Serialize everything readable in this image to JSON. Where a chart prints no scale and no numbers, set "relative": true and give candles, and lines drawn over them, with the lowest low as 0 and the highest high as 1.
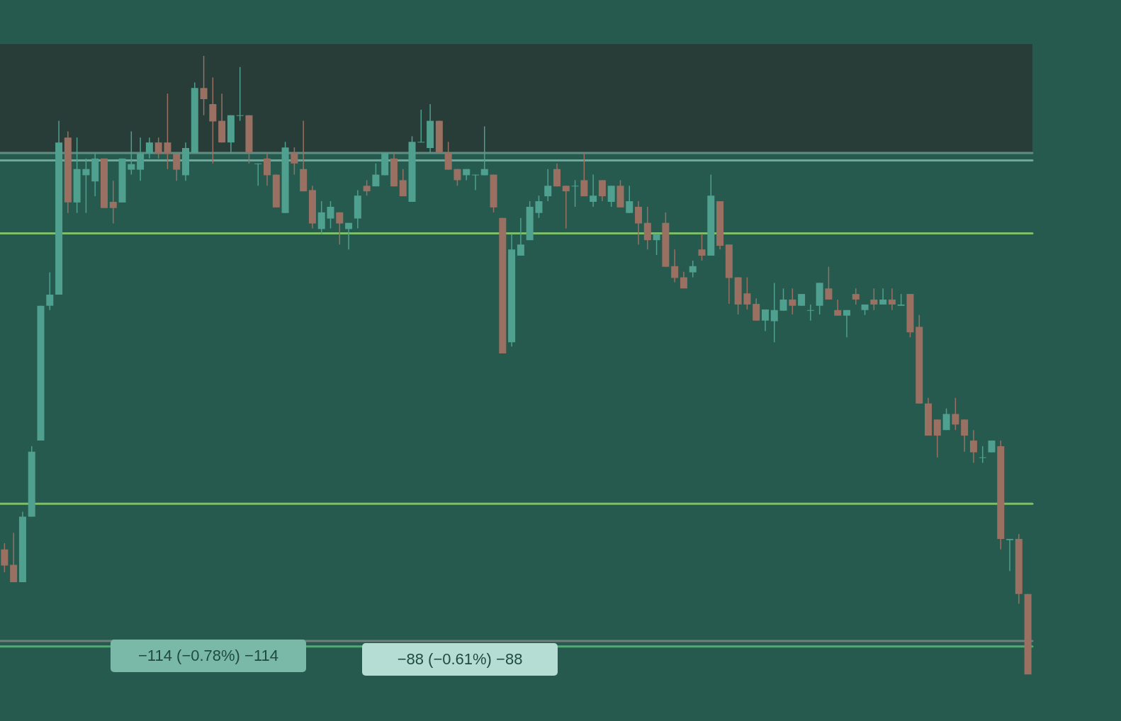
{
  "chart_data": {
    "type": "candlestick",
    "relative": true,
    "categories": [
      null,
      null,
      null,
      null,
      null,
      null,
      null,
      null,
      null,
      null,
      null,
      null,
      null,
      null,
      null,
      null,
      null,
      null,
      null,
      null,
      null,
      null,
      null,
      null,
      null,
      null,
      null,
      null,
      null,
      null,
      null,
      null,
      null,
      null,
      null,
      null,
      null,
      null,
      null,
      null,
      null,
      null,
      null,
      null,
      null,
      null,
      null,
      null,
      null,
      null,
      null,
      null,
      null,
      null,
      null,
      null,
      null,
      null,
      null,
      null,
      null,
      null,
      null,
      null,
      null,
      null,
      null,
      null,
      null,
      null,
      null,
      null,
      null,
      null,
      null,
      null,
      null,
      null,
      null,
      null,
      null,
      null,
      null,
      null,
      null,
      null,
      null,
      null,
      null,
      null,
      null,
      null,
      null,
      null,
      null,
      null,
      null,
      null,
      null,
      null,
      null,
      null,
      null,
      null,
      null,
      null,
      null,
      null,
      null,
      null,
      null,
      null,
      null,
      null
    ],
    "ohlc": [
      [
        0.202,
        0.212,
        0.165,
        0.176
      ],
      [
        0.177,
        0.229,
        0.149,
        0.149
      ],
      [
        0.149,
        0.263,
        0.149,
        0.255
      ],
      [
        0.255,
        0.369,
        0.255,
        0.36
      ],
      [
        0.378,
        0.596,
        0.378,
        0.596
      ],
      [
        0.596,
        0.65,
        0.589,
        0.614
      ],
      [
        0.614,
        0.895,
        0.614,
        0.86
      ],
      [
        0.868,
        0.878,
        0.746,
        0.763
      ],
      [
        0.763,
        0.868,
        0.746,
        0.817
      ],
      [
        0.807,
        0.834,
        0.746,
        0.817
      ],
      [
        0.797,
        0.842,
        0.773,
        0.834
      ],
      [
        0.834,
        0.834,
        0.754,
        0.754
      ],
      [
        0.764,
        0.798,
        0.729,
        0.754
      ],
      [
        0.763,
        0.834,
        0.763,
        0.834
      ],
      [
        0.816,
        0.878,
        0.808,
        0.825
      ],
      [
        0.816,
        0.868,
        0.798,
        0.842
      ],
      [
        0.842,
        0.868,
        0.834,
        0.86
      ],
      [
        0.86,
        0.868,
        0.834,
        0.842
      ],
      [
        0.86,
        0.939,
        0.817,
        0.842
      ],
      [
        0.842,
        0.842,
        0.798,
        0.816
      ],
      [
        0.807,
        0.86,
        0.798,
        0.851
      ],
      [
        0.843,
        0.957,
        0.843,
        0.948
      ],
      [
        0.948,
        1.0,
        0.904,
        0.93
      ],
      [
        0.922,
        0.965,
        0.826,
        0.894
      ],
      [
        0.895,
        0.939,
        0.86,
        0.86
      ],
      [
        0.86,
        0.904,
        0.844,
        0.904
      ],
      [
        0.903,
        0.982,
        0.895,
        0.904
      ],
      [
        0.904,
        0.904,
        0.826,
        0.843
      ],
      [
        0.825,
        0.826,
        0.79,
        0.826
      ],
      [
        0.834,
        0.843,
        0.79,
        0.807
      ],
      [
        0.808,
        0.808,
        0.755,
        0.755
      ],
      [
        0.746,
        0.861,
        0.746,
        0.852
      ],
      [
        0.843,
        0.852,
        0.808,
        0.826
      ],
      [
        0.817,
        0.895,
        0.781,
        0.781
      ],
      [
        0.783,
        0.79,
        0.721,
        0.729
      ],
      [
        0.72,
        0.765,
        0.712,
        0.747
      ],
      [
        0.737,
        0.765,
        0.721,
        0.756
      ],
      [
        0.747,
        0.747,
        0.695,
        0.729
      ],
      [
        0.72,
        0.73,
        0.687,
        0.73
      ],
      [
        0.737,
        0.783,
        0.721,
        0.774
      ],
      [
        0.79,
        0.799,
        0.774,
        0.781
      ],
      [
        0.789,
        0.826,
        0.789,
        0.808
      ],
      [
        0.807,
        0.843,
        0.807,
        0.843
      ],
      [
        0.834,
        0.843,
        0.789,
        0.789
      ],
      [
        0.799,
        0.817,
        0.773,
        0.773
      ],
      [
        0.764,
        0.87,
        0.764,
        0.861
      ],
      [
        0.86,
        0.913,
        0.86,
        0.861
      ],
      [
        0.851,
        0.922,
        0.843,
        0.895
      ],
      [
        0.895,
        0.895,
        0.843,
        0.843
      ],
      [
        0.843,
        0.861,
        0.816,
        0.816
      ],
      [
        0.817,
        0.817,
        0.79,
        0.799
      ],
      [
        0.807,
        0.817,
        0.799,
        0.817
      ],
      [
        0.807,
        0.808,
        0.783,
        0.808
      ],
      [
        0.807,
        0.886,
        0.807,
        0.817
      ],
      [
        0.808,
        0.808,
        0.747,
        0.755
      ],
      [
        0.738,
        0.738,
        0.519,
        0.519
      ],
      [
        0.537,
        0.712,
        0.53,
        0.687
      ],
      [
        0.677,
        0.738,
        0.677,
        0.695
      ],
      [
        0.702,
        0.765,
        0.702,
        0.756
      ],
      [
        0.746,
        0.774,
        0.738,
        0.765
      ],
      [
        0.773,
        0.817,
        0.765,
        0.79
      ],
      [
        0.817,
        0.826,
        0.789,
        0.789
      ],
      [
        0.79,
        0.79,
        0.721,
        0.781
      ],
      [
        0.789,
        0.799,
        0.756,
        0.79
      ],
      [
        0.799,
        0.843,
        0.773,
        0.773
      ],
      [
        0.764,
        0.808,
        0.756,
        0.774
      ],
      [
        0.799,
        0.799,
        0.765,
        0.773
      ],
      [
        0.764,
        0.79,
        0.756,
        0.79
      ],
      [
        0.79,
        0.799,
        0.755,
        0.755
      ],
      [
        0.746,
        0.79,
        0.746,
        0.765
      ],
      [
        0.756,
        0.765,
        0.695,
        0.729
      ],
      [
        0.73,
        0.756,
        0.687,
        0.702
      ],
      [
        0.702,
        0.712,
        0.678,
        0.712
      ],
      [
        0.73,
        0.747,
        0.659,
        0.659
      ],
      [
        0.66,
        0.687,
        0.634,
        0.641
      ],
      [
        0.642,
        0.651,
        0.624,
        0.624
      ],
      [
        0.65,
        0.669,
        0.642,
        0.66
      ],
      [
        0.687,
        0.712,
        0.669,
        0.677
      ],
      [
        0.677,
        0.808,
        0.677,
        0.774
      ],
      [
        0.765,
        0.765,
        0.687,
        0.693
      ],
      [
        0.695,
        0.695,
        0.599,
        0.641
      ],
      [
        0.642,
        0.642,
        0.582,
        0.598
      ],
      [
        0.616,
        0.642,
        0.59,
        0.598
      ],
      [
        0.599,
        0.608,
        0.572,
        0.572
      ],
      [
        0.572,
        0.59,
        0.555,
        0.59
      ],
      [
        0.571,
        0.633,
        0.537,
        0.589
      ],
      [
        0.588,
        0.624,
        0.588,
        0.606
      ],
      [
        0.606,
        0.624,
        0.582,
        0.596
      ],
      [
        0.596,
        0.615,
        0.596,
        0.615
      ],
      [
        0.588,
        0.598,
        0.572,
        0.589
      ],
      [
        0.596,
        0.633,
        0.582,
        0.633
      ],
      [
        0.624,
        0.659,
        0.606,
        0.606
      ],
      [
        0.589,
        0.606,
        0.58,
        0.58
      ],
      [
        0.58,
        0.589,
        0.545,
        0.589
      ],
      [
        0.615,
        0.624,
        0.598,
        0.606
      ],
      [
        0.589,
        0.598,
        0.581,
        0.598
      ],
      [
        0.606,
        0.624,
        0.589,
        0.598
      ],
      [
        0.598,
        0.624,
        0.598,
        0.606
      ],
      [
        0.606,
        0.624,
        0.589,
        0.598
      ],
      [
        0.596,
        0.615,
        0.596,
        0.598
      ],
      [
        0.615,
        0.615,
        0.545,
        0.553
      ],
      [
        0.562,
        0.581,
        0.438,
        0.438
      ],
      [
        0.438,
        0.447,
        0.386,
        0.386
      ],
      [
        0.412,
        0.412,
        0.351,
        0.386
      ],
      [
        0.395,
        0.43,
        0.395,
        0.421
      ],
      [
        0.421,
        0.447,
        0.395,
        0.404
      ],
      [
        0.412,
        0.412,
        0.36,
        0.386
      ],
      [
        0.378,
        0.395,
        0.342,
        0.359
      ],
      [
        0.35,
        0.369,
        0.342,
        0.351
      ],
      [
        0.359,
        0.378,
        0.359,
        0.378
      ],
      [
        0.369,
        0.378,
        0.202,
        0.219
      ],
      [
        0.217,
        0.219,
        0.167,
        0.219
      ],
      [
        0.219,
        0.227,
        0.114,
        0.13
      ],
      [
        0.13,
        0.13,
        0,
        0
      ]
    ],
    "ref_lines": [
      {
        "axis": "y",
        "value": 0.843,
        "color": "#5f8f86",
        "line_style": "solid"
      },
      {
        "axis": "y",
        "value": 0.831,
        "color": "#6aa89c",
        "line_style": "solid"
      },
      {
        "axis": "y",
        "value": 0.713,
        "color": "#7cbf6a",
        "line_style": "solid"
      },
      {
        "axis": "y",
        "value": 0.276,
        "color": "#7cbf6a",
        "line_style": "solid"
      },
      {
        "axis": "y",
        "value": 0.054,
        "color": "#6f7f7a",
        "line_style": "solid"
      },
      {
        "axis": "y",
        "value": 0.045,
        "color": "#4caf6e",
        "line_style": "solid"
      }
    ],
    "bands": [
      {
        "axis": "y",
        "from": 0.843,
        "to": 1.019,
        "color": "#283c38"
      }
    ],
    "annotations": [
      "−114 (−0.78%) −114",
      "−88 (−0.61%) −88"
    ]
  }
}
